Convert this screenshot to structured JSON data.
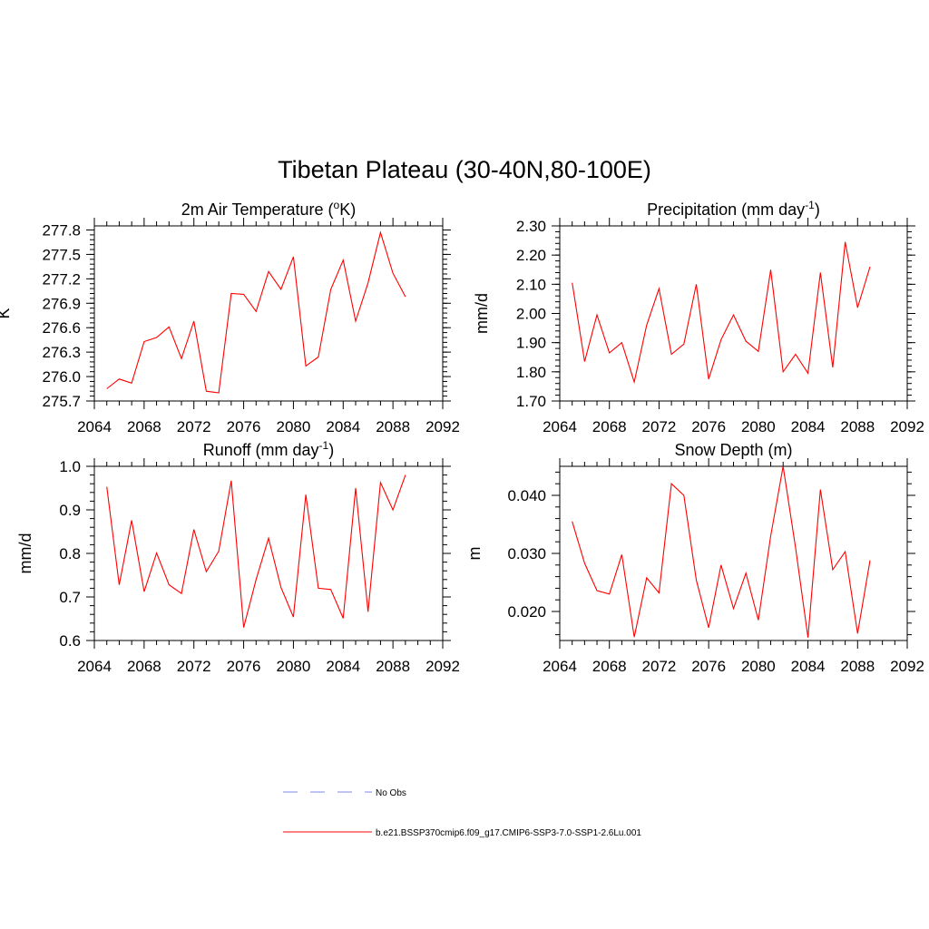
{
  "title": "Tibetan Plateau (30-40N,80-100E)",
  "line_color": "#ff0000",
  "obs_color": "#9aa0ee",
  "legend": {
    "obs_label": "No Obs",
    "model_label": "b.e21.BSSP370cmip6.f09_g17.CMIP6-SSP3-7.0-SSP1-2.6Lu.001"
  },
  "chart_data": [
    {
      "type": "line",
      "title_main": "2m Air Temperature (",
      "title_sup": "o",
      "title_end": "K)",
      "ylabel": "K",
      "xlim": [
        2064,
        2092
      ],
      "xticks": [
        2064,
        2068,
        2072,
        2076,
        2080,
        2084,
        2088,
        2092
      ],
      "xtick_labels": [
        "2064",
        "2068",
        "2072",
        "2076",
        "2080",
        "2084",
        "2088",
        "2092"
      ],
      "ylim": [
        275.7,
        277.85
      ],
      "yticks": [
        275.7,
        276.0,
        276.3,
        276.6,
        276.9,
        277.2,
        277.5,
        277.8
      ],
      "ytick_labels": [
        "275.7",
        "276.0",
        "276.3",
        "276.6",
        "276.9",
        "277.2",
        "277.5",
        "277.8"
      ],
      "series": [
        {
          "x": [
            2065,
            2066,
            2067,
            2068,
            2069,
            2070,
            2071,
            2072,
            2073,
            2074,
            2075,
            2076,
            2077,
            2078,
            2079,
            2080,
            2081,
            2082,
            2083,
            2084,
            2085,
            2086,
            2087,
            2088,
            2089
          ],
          "y": [
            275.85,
            275.97,
            275.92,
            276.43,
            276.48,
            276.61,
            276.22,
            276.68,
            275.82,
            275.8,
            277.02,
            277.01,
            276.8,
            277.29,
            277.07,
            277.47,
            276.13,
            276.24,
            277.07,
            277.43,
            276.68,
            277.15,
            277.77,
            277.27,
            276.98
          ]
        }
      ]
    },
    {
      "type": "line",
      "title_main": "Precipitation (mm day",
      "title_sup": "-1",
      "title_end": ")",
      "ylabel": "mm/d",
      "xlim": [
        2064,
        2092
      ],
      "xticks": [
        2064,
        2068,
        2072,
        2076,
        2080,
        2084,
        2088,
        2092
      ],
      "xtick_labels": [
        "2064",
        "2068",
        "2072",
        "2076",
        "2080",
        "2084",
        "2088",
        "2092"
      ],
      "ylim": [
        1.7,
        2.3
      ],
      "yticks": [
        1.7,
        1.8,
        1.9,
        2.0,
        2.1,
        2.2,
        2.3
      ],
      "ytick_labels": [
        "1.70",
        "1.80",
        "1.90",
        "2.00",
        "2.10",
        "2.20",
        "2.30"
      ],
      "series": [
        {
          "x": [
            2065,
            2066,
            2067,
            2068,
            2069,
            2070,
            2071,
            2072,
            2073,
            2074,
            2075,
            2076,
            2077,
            2078,
            2079,
            2080,
            2081,
            2082,
            2083,
            2084,
            2085,
            2086,
            2087,
            2088,
            2089
          ],
          "y": [
            2.105,
            1.835,
            1.995,
            1.865,
            1.9,
            1.765,
            1.96,
            2.085,
            1.86,
            1.895,
            2.1,
            1.775,
            1.91,
            1.995,
            1.905,
            1.87,
            2.15,
            1.8,
            1.86,
            1.795,
            2.14,
            1.815,
            2.245,
            2.02,
            2.16
          ]
        }
      ]
    },
    {
      "type": "line",
      "title_main": "Runoff (mm day",
      "title_sup": "-1",
      "title_end": ")",
      "ylabel": "mm/d",
      "xlim": [
        2064,
        2092
      ],
      "xticks": [
        2064,
        2068,
        2072,
        2076,
        2080,
        2084,
        2088,
        2092
      ],
      "xtick_labels": [
        "2064",
        "2068",
        "2072",
        "2076",
        "2080",
        "2084",
        "2088",
        "2092"
      ],
      "ylim": [
        0.6,
        1.0
      ],
      "yticks": [
        0.6,
        0.7,
        0.8,
        0.9,
        1.0
      ],
      "ytick_labels": [
        "0.6",
        "0.7",
        "0.8",
        "0.9",
        "1.0"
      ],
      "series": [
        {
          "x": [
            2065,
            2066,
            2067,
            2068,
            2069,
            2070,
            2071,
            2072,
            2073,
            2074,
            2075,
            2076,
            2077,
            2078,
            2079,
            2080,
            2081,
            2082,
            2083,
            2084,
            2085,
            2086,
            2087,
            2088,
            2089
          ],
          "y": [
            0.953,
            0.728,
            0.876,
            0.712,
            0.801,
            0.728,
            0.708,
            0.855,
            0.758,
            0.805,
            0.967,
            0.63,
            0.74,
            0.835,
            0.722,
            0.654,
            0.935,
            0.72,
            0.717,
            0.651,
            0.95,
            0.666,
            0.963,
            0.9,
            0.98
          ]
        }
      ]
    },
    {
      "type": "line",
      "title_main": "Snow Depth (m)",
      "title_sup": "",
      "title_end": "",
      "ylabel": "m",
      "xlim": [
        2064,
        2092
      ],
      "xticks": [
        2064,
        2068,
        2072,
        2076,
        2080,
        2084,
        2088,
        2092
      ],
      "xtick_labels": [
        "2064",
        "2068",
        "2072",
        "2076",
        "2080",
        "2084",
        "2088",
        "2092"
      ],
      "ylim": [
        0.015,
        0.045
      ],
      "yticks": [
        0.02,
        0.03,
        0.04
      ],
      "ytick_labels": [
        "0.020",
        "0.030",
        "0.040"
      ],
      "series": [
        {
          "x": [
            2065,
            2066,
            2067,
            2068,
            2069,
            2070,
            2071,
            2072,
            2073,
            2074,
            2075,
            2076,
            2077,
            2078,
            2079,
            2080,
            2081,
            2082,
            2083,
            2084,
            2085,
            2086,
            2087,
            2088,
            2089
          ],
          "y": [
            0.0355,
            0.0283,
            0.0236,
            0.023,
            0.0298,
            0.0156,
            0.0258,
            0.0232,
            0.042,
            0.04,
            0.0254,
            0.0172,
            0.028,
            0.0205,
            0.0266,
            0.0185,
            0.033,
            0.045,
            0.031,
            0.0155,
            0.041,
            0.0272,
            0.0303,
            0.0162,
            0.0288
          ]
        }
      ]
    }
  ]
}
